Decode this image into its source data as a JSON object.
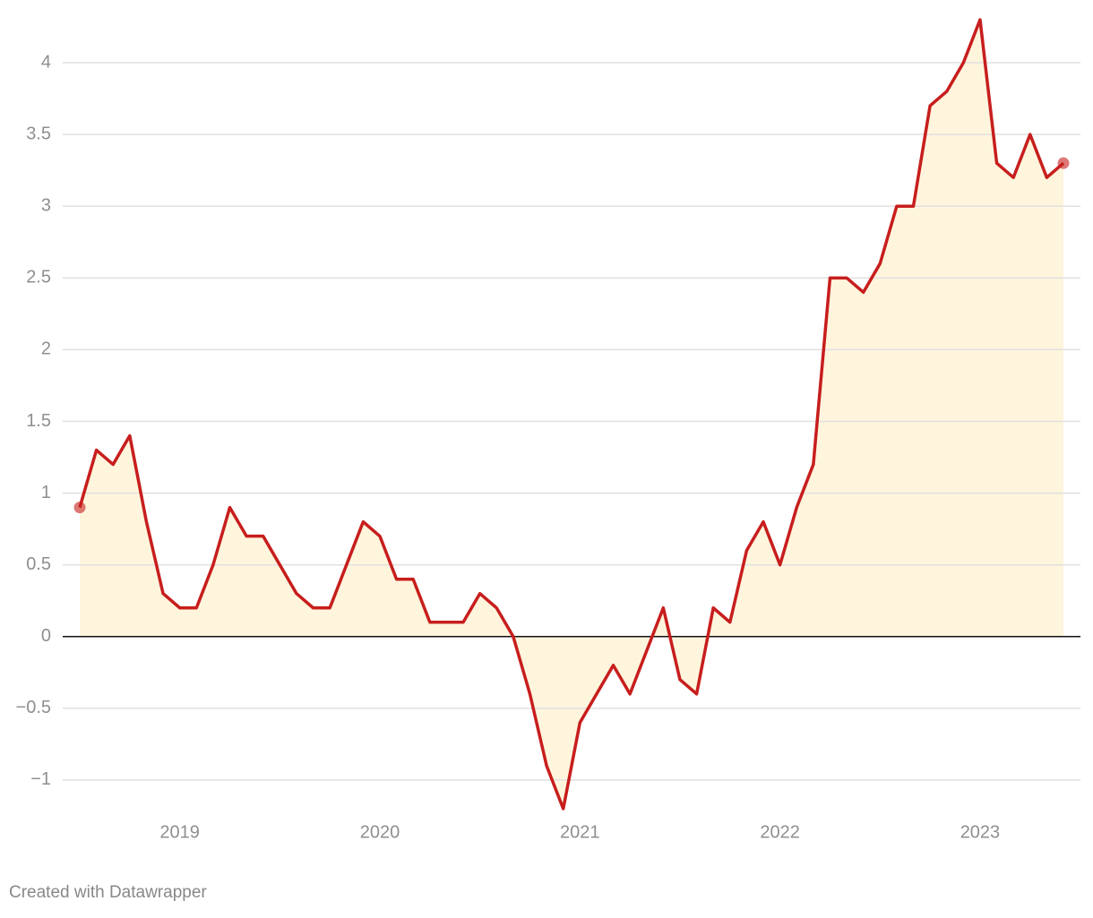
{
  "chart_data": {
    "type": "line",
    "categories": [
      null,
      null,
      null,
      null,
      null,
      null,
      "2019",
      null,
      null,
      null,
      null,
      null,
      null,
      null,
      null,
      null,
      null,
      null,
      "2020",
      null,
      null,
      null,
      null,
      null,
      null,
      null,
      null,
      null,
      null,
      null,
      "2021",
      null,
      null,
      null,
      null,
      null,
      null,
      null,
      null,
      null,
      null,
      null,
      "2022",
      null,
      null,
      null,
      null,
      null,
      null,
      null,
      null,
      null,
      null,
      null,
      "2023",
      null,
      null,
      null,
      null,
      null
    ],
    "series": [
      {
        "color": "#c71e1d",
        "values": [
          0.9,
          1.3,
          1.2,
          1.4,
          0.8,
          0.3,
          0.2,
          0.2,
          0.5,
          0.9,
          0.7,
          0.7,
          0.5,
          0.3,
          0.2,
          0.2,
          0.5,
          0.8,
          0.7,
          0.4,
          0.4,
          0.1,
          0.1,
          0.1,
          0.3,
          0.2,
          0.0,
          -0.4,
          -0.9,
          -1.2,
          -0.6,
          -0.4,
          -0.2,
          -0.4,
          -0.1,
          0.2,
          -0.3,
          -0.4,
          0.2,
          0.1,
          0.6,
          0.8,
          0.5,
          0.9,
          1.2,
          2.5,
          2.5,
          2.4,
          2.6,
          3.0,
          3.0,
          3.7,
          3.8,
          4.0,
          4.3,
          3.3,
          3.2,
          3.5,
          3.2,
          3.3
        ]
      }
    ],
    "area_color": "#fff5dd",
    "ylim": [
      -1.2,
      4.3
    ],
    "yticks": [
      {
        "value": -1,
        "label": "−1"
      },
      {
        "value": -0.5,
        "label": "−0.5"
      },
      0,
      0.5,
      1,
      1.5,
      2,
      2.5,
      3,
      3.5,
      4
    ],
    "grid": true,
    "footer": "Created with Datawrapper"
  }
}
